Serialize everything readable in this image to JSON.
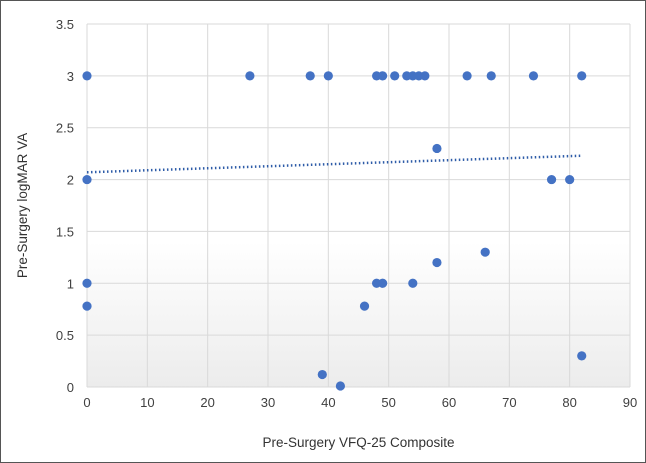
{
  "chart_data": {
    "type": "scatter",
    "xlabel": "Pre-Surgery VFQ-25 Composite",
    "ylabel": "Pre-Surgery logMAR VA",
    "xlim": [
      0,
      90
    ],
    "ylim": [
      0,
      3.5
    ],
    "x_ticks": [
      "0",
      "10",
      "20",
      "30",
      "40",
      "50",
      "60",
      "70",
      "80",
      "90"
    ],
    "y_ticks": [
      "0",
      "0.5",
      "1",
      "1.5",
      "2",
      "2.5",
      "3",
      "3.5"
    ],
    "grid": true,
    "point_color": "#4472C4",
    "trendline": {
      "type": "linear",
      "style": "dotted",
      "color": "#2E5CA8",
      "x": [
        0,
        82
      ],
      "y": [
        2.07,
        2.23
      ]
    },
    "points": [
      {
        "x": 0,
        "y": 3.0
      },
      {
        "x": 0,
        "y": 2.0
      },
      {
        "x": 0,
        "y": 1.0
      },
      {
        "x": 0,
        "y": 0.78
      },
      {
        "x": 27,
        "y": 3.0
      },
      {
        "x": 37,
        "y": 3.0
      },
      {
        "x": 40,
        "y": 3.0
      },
      {
        "x": 48,
        "y": 3.0
      },
      {
        "x": 49,
        "y": 3.0
      },
      {
        "x": 51,
        "y": 3.0
      },
      {
        "x": 53,
        "y": 3.0
      },
      {
        "x": 54,
        "y": 3.0
      },
      {
        "x": 55,
        "y": 3.0
      },
      {
        "x": 56,
        "y": 3.0
      },
      {
        "x": 63,
        "y": 3.0
      },
      {
        "x": 67,
        "y": 3.0
      },
      {
        "x": 74,
        "y": 3.0
      },
      {
        "x": 82,
        "y": 3.0
      },
      {
        "x": 58,
        "y": 2.3
      },
      {
        "x": 77,
        "y": 2.0
      },
      {
        "x": 80,
        "y": 2.0
      },
      {
        "x": 66,
        "y": 1.3
      },
      {
        "x": 58,
        "y": 1.2
      },
      {
        "x": 48,
        "y": 1.0
      },
      {
        "x": 49,
        "y": 1.0
      },
      {
        "x": 54,
        "y": 1.0
      },
      {
        "x": 46,
        "y": 0.78
      },
      {
        "x": 39,
        "y": 0.12
      },
      {
        "x": 42,
        "y": 0.01
      },
      {
        "x": 82,
        "y": 0.3
      }
    ]
  }
}
